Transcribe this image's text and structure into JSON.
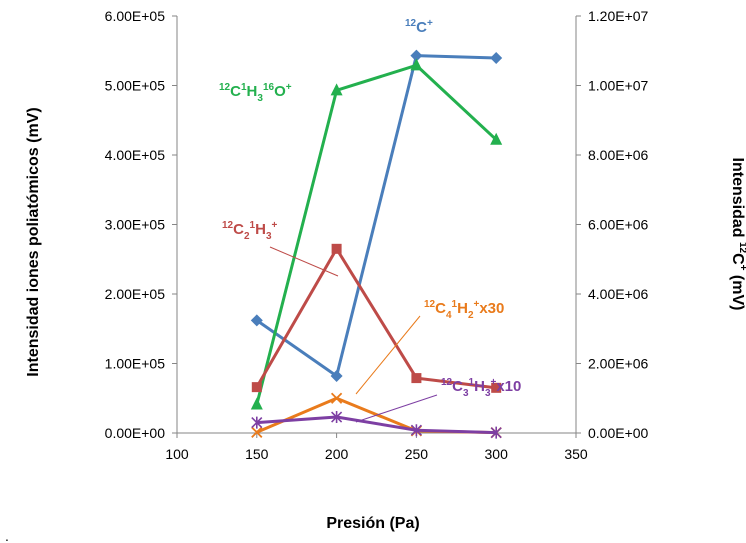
{
  "chart_data": {
    "type": "line",
    "xlabel": "Presión (Pa)",
    "ylabel": "Intensidad iones poliatómicos (mV)",
    "y2label": {
      "pre": "Intensidad ",
      "sup": "12",
      "main": "C",
      "sup2": "+",
      "post": "  (mV)"
    },
    "xlim": [
      100,
      350
    ],
    "ylim": [
      0,
      600000
    ],
    "y2lim": [
      0,
      12000000
    ],
    "x_ticks": [
      "100",
      "150",
      "200",
      "250",
      "300",
      "350"
    ],
    "y_ticks": [
      "0.00E+00",
      "1.00E+05",
      "2.00E+05",
      "3.00E+05",
      "4.00E+05",
      "5.00E+05",
      "6.00E+05"
    ],
    "y2_ticks": [
      "0.00E+00",
      "2.00E+06",
      "4.00E+06",
      "6.00E+06",
      "8.00E+06",
      "1.00E+07",
      "1.20E+07"
    ],
    "grid": false,
    "stray_mark": ".",
    "series": [
      {
        "axis": "right",
        "color": "#4a7ebb",
        "marker": "diamond",
        "label_parts": [
          {
            "t": "12",
            "k": "sup"
          },
          {
            "t": "C",
            "k": "n"
          },
          {
            "t": "+",
            "k": "sup"
          }
        ],
        "points": [
          [
            150,
            3240000
          ],
          [
            200,
            1640000
          ],
          [
            250,
            10860000
          ],
          [
            300,
            10790000
          ]
        ]
      },
      {
        "axis": "left",
        "color": "#23b04e",
        "marker": "triangle",
        "label_parts": [
          {
            "t": "12",
            "k": "sup"
          },
          {
            "t": "C",
            "k": "n"
          },
          {
            "t": "1",
            "k": "sup"
          },
          {
            "t": "H",
            "k": "n"
          },
          {
            "t": "3",
            "k": "sub"
          },
          {
            "t": "16",
            "k": "sup"
          },
          {
            "t": "O",
            "k": "n"
          },
          {
            "t": "+",
            "k": "sup"
          }
        ],
        "points": [
          [
            150,
            41000
          ],
          [
            200,
            493000
          ],
          [
            250,
            529000
          ],
          [
            300,
            422000
          ]
        ]
      },
      {
        "axis": "left",
        "color": "#be4b48",
        "marker": "square",
        "label_parts": [
          {
            "t": "12",
            "k": "sup"
          },
          {
            "t": "C",
            "k": "n"
          },
          {
            "t": "2",
            "k": "sub"
          },
          {
            "t": "1",
            "k": "sup"
          },
          {
            "t": "H",
            "k": "n"
          },
          {
            "t": "3",
            "k": "sub"
          },
          {
            "t": "+",
            "k": "sup"
          }
        ],
        "points": [
          [
            150,
            66000
          ],
          [
            200,
            265000
          ],
          [
            250,
            79000
          ],
          [
            300,
            65000
          ]
        ]
      },
      {
        "axis": "left",
        "color": "#e97b1c",
        "marker": "x",
        "label_parts": [
          {
            "t": "12",
            "k": "sup"
          },
          {
            "t": "C",
            "k": "n"
          },
          {
            "t": "4",
            "k": "sub"
          },
          {
            "t": "1",
            "k": "sup"
          },
          {
            "t": "H",
            "k": "n"
          },
          {
            "t": "2",
            "k": "sub"
          },
          {
            "t": "+",
            "k": "sup"
          },
          {
            "t": "x30",
            "k": "n"
          }
        ],
        "points": [
          [
            150,
            1000
          ],
          [
            200,
            50000
          ],
          [
            250,
            3000
          ],
          [
            300,
            500
          ]
        ]
      },
      {
        "axis": "left",
        "color": "#7d3fa3",
        "marker": "star",
        "label_parts": [
          {
            "t": "12",
            "k": "sup"
          },
          {
            "t": "C",
            "k": "n"
          },
          {
            "t": "3",
            "k": "sub"
          },
          {
            "t": "1",
            "k": "sup"
          },
          {
            "t": "H",
            "k": "n"
          },
          {
            "t": "3",
            "k": "sub"
          },
          {
            "t": "+",
            "k": "sup"
          },
          {
            "t": "x10",
            "k": "n"
          }
        ],
        "points": [
          [
            150,
            15000
          ],
          [
            200,
            23000
          ],
          [
            250,
            4000
          ],
          [
            300,
            500
          ]
        ]
      }
    ]
  }
}
